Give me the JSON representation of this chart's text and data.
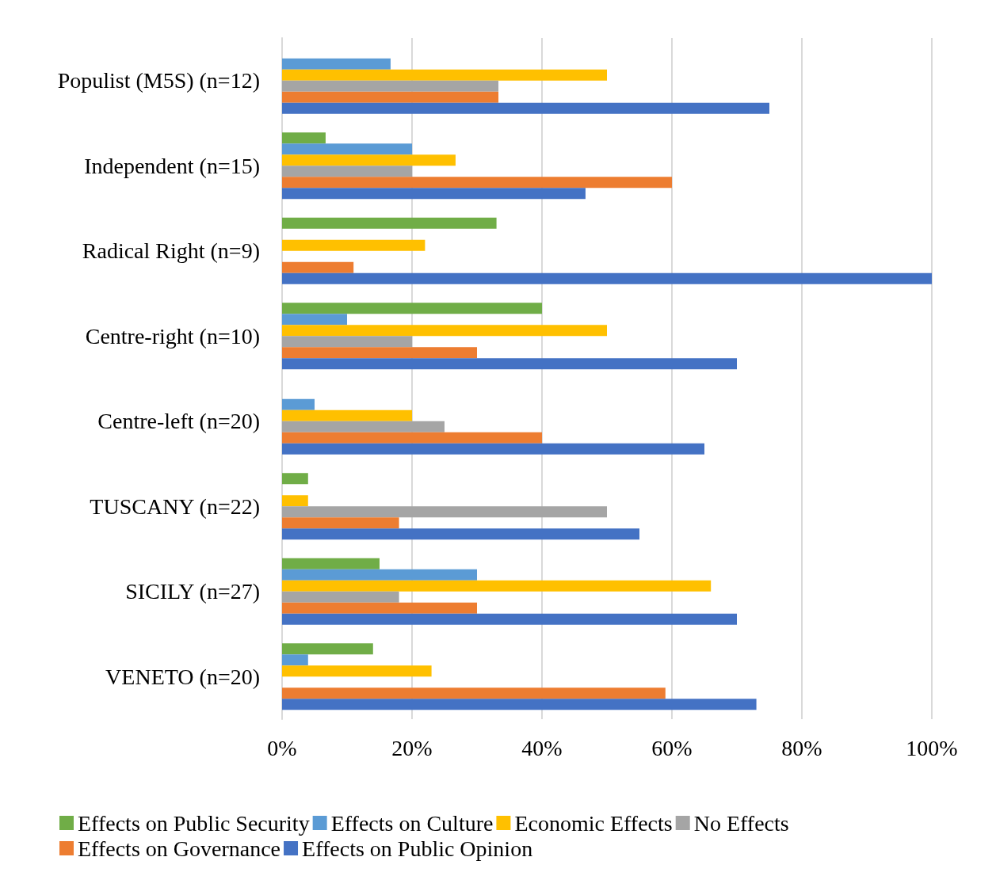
{
  "chart_data": {
    "type": "bar",
    "orientation": "horizontal",
    "categories": [
      "Populist (M5S) (n=12)",
      "Independent (n=15)",
      "Radical Right (n=9)",
      "Centre-right (n=10)",
      "Centre-left (n=20)",
      "TUSCANY (n=22)",
      "SICILY (n=27)",
      "VENETO (n=20)"
    ],
    "series": [
      {
        "name": "Effects on Public Security",
        "color": "#70ad47",
        "values": [
          0,
          6.7,
          33,
          40,
          0,
          4,
          15,
          14
        ]
      },
      {
        "name": "Effects on Culture",
        "color": "#5b9bd5",
        "values": [
          16.7,
          20,
          0,
          10,
          5,
          0,
          30,
          4
        ]
      },
      {
        "name": "Economic Effects",
        "color": "#ffc000",
        "values": [
          50,
          26.7,
          22,
          50,
          20,
          4,
          66,
          23
        ]
      },
      {
        "name": "No Effects",
        "color": "#a5a5a5",
        "values": [
          33.3,
          20,
          0,
          20,
          25,
          50,
          18,
          0
        ]
      },
      {
        "name": "Effects on Governance",
        "color": "#ed7d31",
        "values": [
          33.3,
          60,
          11,
          30,
          40,
          18,
          30,
          59
        ]
      },
      {
        "name": "Effects on Public Opinion",
        "color": "#4472c4",
        "values": [
          75,
          46.7,
          100,
          70,
          65,
          55,
          70,
          73
        ]
      }
    ],
    "xlim": [
      0,
      100
    ],
    "xticks": [
      {
        "value": 0,
        "label": "0%"
      },
      {
        "value": 20,
        "label": "20%"
      },
      {
        "value": 40,
        "label": "40%"
      },
      {
        "value": 60,
        "label": "60%"
      },
      {
        "value": 80,
        "label": "80%"
      },
      {
        "value": 100,
        "label": "100%"
      }
    ],
    "grid": "x",
    "legend": "bottom"
  }
}
